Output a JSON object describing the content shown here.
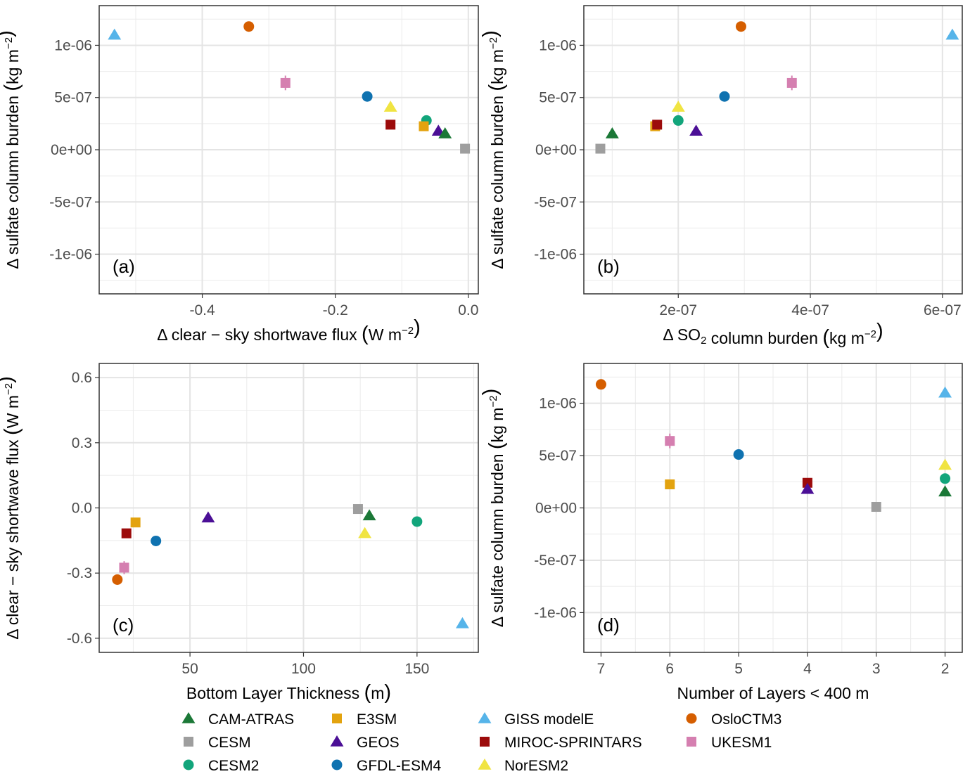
{
  "colors": {
    "CAM-ATRAS": "#1b7837",
    "CESM": "#9e9e9e",
    "CESM2": "#12a57b",
    "E3SM": "#e3a30f",
    "GEOS": "#4b0f96",
    "GFDL-ESM4": "#0f72b0",
    "GISS modelE": "#56b4e9",
    "MIROC-SPRINTARS": "#9c0b0b",
    "NorESM2": "#f0e442",
    "OsloCTM3": "#d55e00",
    "UKESM1": "#d57fb0"
  },
  "legend": {
    "position": "bottom",
    "entries": [
      {
        "name": "CAM-ATRAS",
        "shape": "triangle"
      },
      {
        "name": "CESM",
        "shape": "square"
      },
      {
        "name": "CESM2",
        "shape": "circle"
      },
      {
        "name": "E3SM",
        "shape": "square"
      },
      {
        "name": "GEOS",
        "shape": "triangle"
      },
      {
        "name": "GFDL-ESM4",
        "shape": "circle"
      },
      {
        "name": "GISS modelE",
        "shape": "triangle"
      },
      {
        "name": "MIROC-SPRINTARS",
        "shape": "square"
      },
      {
        "name": "NorESM2",
        "shape": "triangle"
      },
      {
        "name": "OsloCTM3",
        "shape": "circle"
      },
      {
        "name": "UKESM1",
        "shape": "square"
      }
    ]
  },
  "chart_data": [
    {
      "type": "scatter",
      "panel_label": "(a)",
      "xlabel": "Δ clear − sky shortwave flux (W m−2)",
      "ylabel": "Δ sulfate column burden (kg m−2)",
      "xlim": [
        -0.555,
        0.015
      ],
      "ylim": [
        -1.38e-06,
        1.38e-06
      ],
      "xticks": [
        -0.4,
        -0.2,
        0.0
      ],
      "xtick_labels": [
        "-0.4",
        "-0.2",
        "0.0"
      ],
      "yticks": [
        -1e-06,
        -5e-07,
        0,
        5e-07,
        1e-06
      ],
      "ytick_labels": [
        "-1e-06",
        "-5e-07",
        "0e+00",
        "5e-07",
        "1e-06"
      ],
      "grid": true,
      "points": [
        {
          "model": "GISS modelE",
          "x": -0.532,
          "y": 1.1e-06
        },
        {
          "model": "OsloCTM3",
          "x": -0.33,
          "y": 1.18e-06
        },
        {
          "model": "UKESM1",
          "x": -0.275,
          "y": 6.4e-07,
          "err": 7e-08
        },
        {
          "model": "GFDL-ESM4",
          "x": -0.152,
          "y": 5.1e-07
        },
        {
          "model": "NorESM2",
          "x": -0.117,
          "y": 4.1e-07
        },
        {
          "model": "MIROC-SPRINTARS",
          "x": -0.117,
          "y": 2.4e-07
        },
        {
          "model": "CESM2",
          "x": -0.063,
          "y": 2.8e-07
        },
        {
          "model": "E3SM",
          "x": -0.067,
          "y": 2.25e-07
        },
        {
          "model": "GEOS",
          "x": -0.045,
          "y": 1.8e-07
        },
        {
          "model": "CAM-ATRAS",
          "x": -0.035,
          "y": 1.55e-07
        },
        {
          "model": "CESM",
          "x": -0.005,
          "y": 1e-08
        }
      ]
    },
    {
      "type": "scatter",
      "panel_label": "(b)",
      "xlabel": "Δ SO2 column burden (kg m−2)",
      "ylabel": "Δ sulfate column burden (kg m−2)",
      "xlim": [
        5.7e-08,
        6.3e-07
      ],
      "ylim": [
        -1.38e-06,
        1.38e-06
      ],
      "xticks": [
        2e-07,
        4e-07,
        6e-07
      ],
      "xtick_labels": [
        "2e-07",
        "4e-07",
        "6e-07"
      ],
      "yticks": [
        -1e-06,
        -5e-07,
        0,
        5e-07,
        1e-06
      ],
      "ytick_labels": [
        "-1e-06",
        "-5e-07",
        "0e+00",
        "5e-07",
        "1e-06"
      ],
      "grid": true,
      "points": [
        {
          "model": "CESM",
          "x": 8.2e-08,
          "y": 1e-08
        },
        {
          "model": "CAM-ATRAS",
          "x": 1e-07,
          "y": 1.55e-07
        },
        {
          "model": "E3SM",
          "x": 1.65e-07,
          "y": 2.25e-07
        },
        {
          "model": "MIROC-SPRINTARS",
          "x": 1.68e-07,
          "y": 2.4e-07
        },
        {
          "model": "NorESM2",
          "x": 2e-07,
          "y": 4.1e-07
        },
        {
          "model": "CESM2",
          "x": 2e-07,
          "y": 2.8e-07
        },
        {
          "model": "GEOS",
          "x": 2.27e-07,
          "y": 1.8e-07
        },
        {
          "model": "GFDL-ESM4",
          "x": 2.7e-07,
          "y": 5.1e-07
        },
        {
          "model": "OsloCTM3",
          "x": 2.95e-07,
          "y": 1.18e-06
        },
        {
          "model": "UKESM1",
          "x": 3.72e-07,
          "y": 6.4e-07,
          "err": 7e-08
        },
        {
          "model": "GISS modelE",
          "x": 6.15e-07,
          "y": 1.1e-06
        }
      ]
    },
    {
      "type": "scatter",
      "panel_label": "(c)",
      "xlabel": "Bottom Layer Thickness (m)",
      "ylabel": "Δ clear − sky shortwave flux (W m−2)",
      "xlim": [
        10,
        177
      ],
      "ylim": [
        -0.665,
        0.665
      ],
      "xticks": [
        50,
        100,
        150
      ],
      "xtick_labels": [
        "50",
        "100",
        "150"
      ],
      "yticks": [
        -0.6,
        -0.3,
        0.0,
        0.3,
        0.6
      ],
      "ytick_labels": [
        "-0.6",
        "-0.3",
        "0.0",
        "0.3",
        "0.6"
      ],
      "grid": true,
      "points": [
        {
          "model": "OsloCTM3",
          "x": 18,
          "y": -0.33
        },
        {
          "model": "UKESM1",
          "x": 21,
          "y": -0.275,
          "err": 0.03
        },
        {
          "model": "MIROC-SPRINTARS",
          "x": 22,
          "y": -0.117
        },
        {
          "model": "E3SM",
          "x": 26,
          "y": -0.067
        },
        {
          "model": "GFDL-ESM4",
          "x": 35,
          "y": -0.152
        },
        {
          "model": "GEOS",
          "x": 58,
          "y": -0.045
        },
        {
          "model": "CESM",
          "x": 124,
          "y": -0.005
        },
        {
          "model": "CAM-ATRAS",
          "x": 129,
          "y": -0.035
        },
        {
          "model": "NorESM2",
          "x": 127,
          "y": -0.117
        },
        {
          "model": "CESM2",
          "x": 150,
          "y": -0.063
        },
        {
          "model": "GISS modelE",
          "x": 170,
          "y": -0.532
        }
      ]
    },
    {
      "type": "scatter",
      "panel_label": "(d)",
      "xlabel": "Number of Layers < 400 m",
      "ylabel": "Δ sulfate column burden (kg m−2)",
      "xlim": [
        7.25,
        1.75
      ],
      "x_reversed": true,
      "ylim": [
        -1.38e-06,
        1.38e-06
      ],
      "xticks": [
        7,
        6,
        5,
        4,
        3,
        2
      ],
      "xtick_labels": [
        "7",
        "6",
        "5",
        "4",
        "3",
        "2"
      ],
      "yticks": [
        -1e-06,
        -5e-07,
        0,
        5e-07,
        1e-06
      ],
      "ytick_labels": [
        "-1e-06",
        "-5e-07",
        "0e+00",
        "5e-07",
        "1e-06"
      ],
      "grid": true,
      "points": [
        {
          "model": "OsloCTM3",
          "x": 7,
          "y": 1.18e-06
        },
        {
          "model": "UKESM1",
          "x": 6,
          "y": 6.4e-07,
          "err": 7e-08
        },
        {
          "model": "E3SM",
          "x": 6,
          "y": 2.25e-07
        },
        {
          "model": "GFDL-ESM4",
          "x": 5,
          "y": 5.1e-07
        },
        {
          "model": "MIROC-SPRINTARS",
          "x": 4,
          "y": 2.4e-07
        },
        {
          "model": "GEOS",
          "x": 4,
          "y": 1.8e-07
        },
        {
          "model": "CESM",
          "x": 3,
          "y": 1e-08
        },
        {
          "model": "GISS modelE",
          "x": 2,
          "y": 1.1e-06
        },
        {
          "model": "NorESM2",
          "x": 2,
          "y": 4.1e-07
        },
        {
          "model": "CESM2",
          "x": 2,
          "y": 2.8e-07
        },
        {
          "model": "CAM-ATRAS",
          "x": 2,
          "y": 1.55e-07
        }
      ]
    }
  ]
}
